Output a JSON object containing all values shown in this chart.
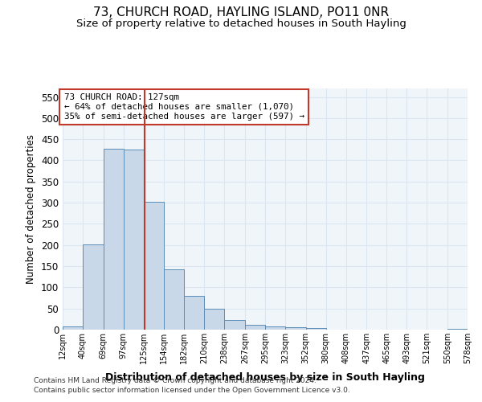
{
  "title": "73, CHURCH ROAD, HAYLING ISLAND, PO11 0NR",
  "subtitle": "Size of property relative to detached houses in South Hayling",
  "xlabel": "Distribution of detached houses by size in South Hayling",
  "ylabel": "Number of detached properties",
  "footnote1": "Contains HM Land Registry data © Crown copyright and database right 2024.",
  "footnote2": "Contains public sector information licensed under the Open Government Licence v3.0.",
  "annotation_line1": "73 CHURCH ROAD: 127sqm",
  "annotation_line2": "← 64% of detached houses are smaller (1,070)",
  "annotation_line3": "35% of semi-detached houses are larger (597) →",
  "bar_color": "#c8d8e8",
  "bar_edge_color": "#5b8db8",
  "vline_color": "#c0392b",
  "vline_x": 127,
  "bin_edges": [
    12,
    40,
    69,
    97,
    125,
    154,
    182,
    210,
    238,
    267,
    295,
    323,
    352,
    380,
    408,
    437,
    465,
    493,
    521,
    550,
    578
  ],
  "bar_heights": [
    8,
    201,
    428,
    425,
    302,
    143,
    80,
    50,
    23,
    12,
    8,
    5,
    4,
    0,
    0,
    0,
    0,
    0,
    0,
    2
  ],
  "ylim": [
    0,
    570
  ],
  "yticks": [
    0,
    50,
    100,
    150,
    200,
    250,
    300,
    350,
    400,
    450,
    500,
    550
  ],
  "grid_color": "#dce6f0",
  "bg_color": "#f0f5fa",
  "box_color": "#c0392b",
  "title_fontsize": 11,
  "subtitle_fontsize": 9.5
}
